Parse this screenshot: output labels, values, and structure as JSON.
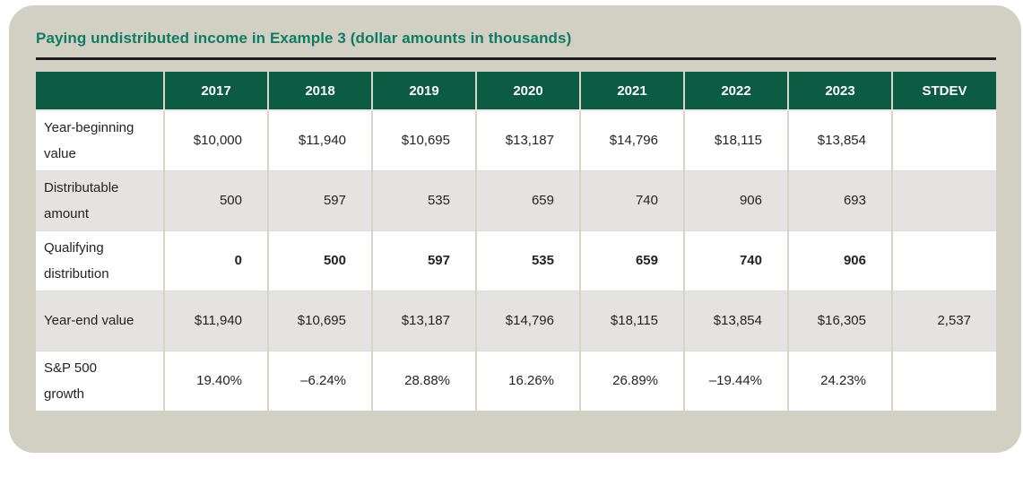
{
  "title": "Paying undistributed income in Example 3 (dollar amounts in thousands)",
  "table": {
    "columns": [
      "",
      "2017",
      "2018",
      "2019",
      "2020",
      "2021",
      "2022",
      "2023",
      "STDEV"
    ],
    "rows": [
      {
        "label": "Year-beginning\nvalue",
        "values": [
          "$10,000",
          "$11,940",
          "$10,695",
          "$13,187",
          "$14,796",
          "$18,115",
          "$13,854",
          ""
        ]
      },
      {
        "label": "Distributable\namount",
        "values": [
          "500",
          "597",
          "535",
          "659",
          "740",
          "906",
          "693",
          ""
        ]
      },
      {
        "label": "Qualifying\ndistribution",
        "values": [
          "0",
          "500",
          "597",
          "535",
          "659",
          "740",
          "906",
          ""
        ]
      },
      {
        "label": "Year-end value",
        "values": [
          "$11,940",
          "$10,695",
          "$13,187",
          "$14,796",
          "$18,115",
          "$13,854",
          "$16,305",
          "2,537"
        ]
      },
      {
        "label": "S&P 500\ngrowth",
        "values": [
          "19.40%",
          "–6.24%",
          "28.88%",
          "16.26%",
          "26.89%",
          "–19.44%",
          "24.23%",
          ""
        ]
      }
    ]
  },
  "chart_data": {
    "type": "table",
    "title": "Paying undistributed income in Example 3 (dollar amounts in thousands)",
    "categories": [
      "2017",
      "2018",
      "2019",
      "2020",
      "2021",
      "2022",
      "2023"
    ],
    "series": [
      {
        "name": "Year-beginning value",
        "values": [
          10000,
          11940,
          10695,
          13187,
          14796,
          18115,
          13854
        ]
      },
      {
        "name": "Distributable amount",
        "values": [
          500,
          597,
          535,
          659,
          740,
          906,
          693
        ]
      },
      {
        "name": "Qualifying distribution",
        "values": [
          0,
          500,
          597,
          535,
          659,
          740,
          906
        ]
      },
      {
        "name": "Year-end value",
        "values": [
          11940,
          10695,
          13187,
          14796,
          18115,
          13854,
          16305
        ],
        "stdev": 2537
      },
      {
        "name": "S&P 500 growth (%)",
        "values": [
          19.4,
          -6.24,
          28.88,
          16.26,
          26.89,
          -19.44,
          24.23
        ]
      }
    ],
    "layout_hints": {
      "header_row": "years across top",
      "stdev_column": "rightmost",
      "shaded_rows": [
        2,
        4
      ]
    }
  },
  "colors": {
    "panel_bg": "#d2cfc3",
    "header_bg": "#0b5c42",
    "title_text": "#0e7c63",
    "shaded_row_bg": "#e4e3e2",
    "title_rule": "#1d1d1b",
    "body_text": "#262223"
  }
}
